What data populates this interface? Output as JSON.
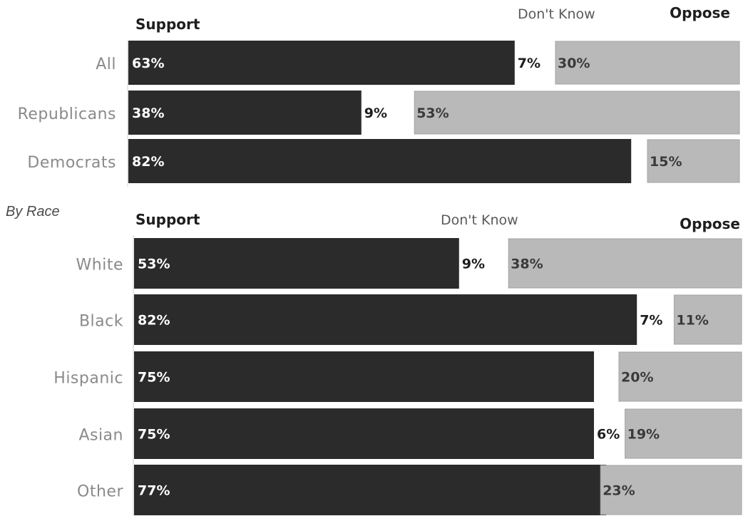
{
  "chart_data": [
    {
      "type": "bar",
      "stacked": true,
      "orientation": "horizontal",
      "headers": {
        "support": "Support",
        "dont_know": "Don't Know",
        "oppose": "Oppose"
      },
      "categories": [
        "All",
        "Republicans",
        "Democrats"
      ],
      "series": [
        {
          "name": "Support",
          "values": [
            63,
            38,
            82
          ],
          "labels": [
            "63%",
            "38%",
            "82%"
          ]
        },
        {
          "name": "Don't Know",
          "values": [
            7,
            9,
            3
          ],
          "labels": [
            "7%",
            "9%",
            ""
          ]
        },
        {
          "name": "Oppose",
          "values": [
            30,
            53,
            15
          ],
          "labels": [
            "30%",
            "53%",
            "15%"
          ]
        }
      ],
      "xlim": [
        0,
        100
      ]
    },
    {
      "type": "bar",
      "stacked": true,
      "orientation": "horizontal",
      "section_label": "By Race",
      "headers": {
        "support": "Support",
        "dont_know": "Don't Know",
        "oppose": "Oppose"
      },
      "categories": [
        "White",
        "Black",
        "Hispanic",
        "Asian",
        "Other"
      ],
      "series": [
        {
          "name": "Support",
          "values": [
            53,
            82,
            75,
            75,
            77
          ],
          "labels": [
            "53%",
            "82%",
            "75%",
            "75%",
            "77%"
          ]
        },
        {
          "name": "Don't Know",
          "values": [
            9,
            7,
            5,
            6,
            0
          ],
          "labels": [
            "9%",
            "7%",
            "",
            "6%",
            ""
          ]
        },
        {
          "name": "Oppose",
          "values": [
            38,
            11,
            20,
            19,
            23
          ],
          "labels": [
            "38%",
            "11%",
            "20%",
            "19%",
            "23%"
          ]
        }
      ],
      "xlim": [
        0,
        100
      ]
    }
  ],
  "colors": {
    "support": "#2b2b2b",
    "oppose": "#b9b9b9",
    "oppose_border": "#a3a3a3"
  }
}
